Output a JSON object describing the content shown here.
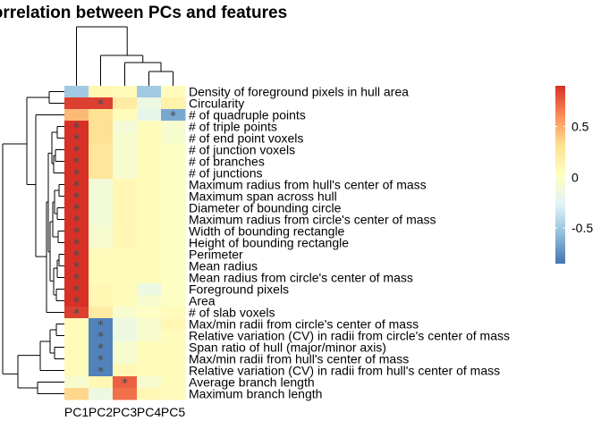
{
  "chart_data": {
    "type": "heatmap",
    "title": "Correlation between PCs and features",
    "columns": [
      "PC1",
      "PC2",
      "PC3",
      "PC4",
      "PC5"
    ],
    "rows": [
      "Density of foreground pixels in hull area",
      "Circularity",
      "# of quadruple points",
      "# of triple points",
      "# of end point voxels",
      "# of junction voxels",
      "# of branches",
      "# of junctions",
      "Maximum radius from hull's center of mass",
      "Maximum span across hull",
      "Diameter of bounding circle",
      "Maximum radius from circle's center of mass",
      "Width of bounding rectangle",
      "Height of bounding rectangle",
      "Perimeter",
      "Mean radius",
      "Mean radius from circle's center of mass",
      "Foreground pixels",
      "Area",
      "# of slab voxels",
      "Max/min radii from circle's center of mass",
      "Relative variation (CV) in radii from circle's center of mass",
      "Span ratio of hull (major/minor axis)",
      "Max/min radii from hull's center of mass",
      "Relative variation (CV) in radii from hull's center of mass",
      "Average branch length",
      "Maximum branch length"
    ],
    "values": [
      [
        -0.5,
        0.1,
        0.05,
        -0.5,
        0.05
      ],
      [
        0.85,
        0.85,
        0.2,
        -0.15,
        0.15
      ],
      [
        0.45,
        0.3,
        0.05,
        -0.2,
        -0.65
      ],
      [
        0.9,
        0.3,
        -0.1,
        0.05,
        -0.05
      ],
      [
        0.9,
        0.3,
        -0.05,
        0.05,
        -0.05
      ],
      [
        0.9,
        0.25,
        -0.05,
        0.05,
        0.0
      ],
      [
        0.9,
        0.25,
        -0.05,
        0.05,
        0.0
      ],
      [
        0.9,
        0.25,
        -0.05,
        0.05,
        0.0
      ],
      [
        0.9,
        -0.1,
        0.1,
        0.05,
        0.0
      ],
      [
        0.9,
        -0.1,
        0.1,
        0.05,
        0.0
      ],
      [
        0.9,
        -0.1,
        0.1,
        0.05,
        0.0
      ],
      [
        0.9,
        -0.1,
        0.1,
        0.05,
        0.0
      ],
      [
        0.9,
        -0.05,
        0.1,
        0.05,
        0.0
      ],
      [
        0.9,
        -0.05,
        0.1,
        0.05,
        0.0
      ],
      [
        0.9,
        0.05,
        0.05,
        0.05,
        0.0
      ],
      [
        0.9,
        0.05,
        0.05,
        0.05,
        0.0
      ],
      [
        0.9,
        0.05,
        0.05,
        0.05,
        0.0
      ],
      [
        0.9,
        0.1,
        0.05,
        -0.15,
        0.0
      ],
      [
        0.9,
        0.1,
        0.05,
        -0.05,
        0.0
      ],
      [
        0.85,
        0.2,
        -0.05,
        0.0,
        0.05
      ],
      [
        0.05,
        -0.8,
        -0.15,
        -0.05,
        0.1
      ],
      [
        0.05,
        -0.8,
        -0.15,
        -0.05,
        0.05
      ],
      [
        0.05,
        -0.8,
        -0.05,
        0.05,
        0.05
      ],
      [
        0.05,
        -0.8,
        -0.05,
        0.05,
        0.05
      ],
      [
        0.05,
        -0.8,
        0.1,
        0.05,
        0.05
      ],
      [
        -0.05,
        0.1,
        0.75,
        -0.05,
        0.05
      ],
      [
        0.35,
        -0.15,
        0.7,
        0.1,
        0.05
      ]
    ],
    "significant": [
      [
        0,
        0,
        0,
        0,
        0
      ],
      [
        0,
        1,
        0,
        0,
        0
      ],
      [
        0,
        0,
        0,
        0,
        1
      ],
      [
        1,
        0,
        0,
        0,
        0
      ],
      [
        1,
        0,
        0,
        0,
        0
      ],
      [
        1,
        0,
        0,
        0,
        0
      ],
      [
        1,
        0,
        0,
        0,
        0
      ],
      [
        1,
        0,
        0,
        0,
        0
      ],
      [
        1,
        0,
        0,
        0,
        0
      ],
      [
        1,
        0,
        0,
        0,
        0
      ],
      [
        1,
        0,
        0,
        0,
        0
      ],
      [
        1,
        0,
        0,
        0,
        0
      ],
      [
        1,
        0,
        0,
        0,
        0
      ],
      [
        1,
        0,
        0,
        0,
        0
      ],
      [
        1,
        0,
        0,
        0,
        0
      ],
      [
        1,
        0,
        0,
        0,
        0
      ],
      [
        1,
        0,
        0,
        0,
        0
      ],
      [
        1,
        0,
        0,
        0,
        0
      ],
      [
        1,
        0,
        0,
        0,
        0
      ],
      [
        1,
        0,
        0,
        0,
        0
      ],
      [
        0,
        1,
        0,
        0,
        0
      ],
      [
        0,
        1,
        0,
        0,
        0
      ],
      [
        0,
        1,
        0,
        0,
        0
      ],
      [
        0,
        1,
        0,
        0,
        0
      ],
      [
        0,
        1,
        0,
        0,
        0
      ],
      [
        0,
        0,
        1,
        0,
        0
      ],
      [
        0,
        0,
        0,
        0,
        0
      ]
    ],
    "significance_marker": "*",
    "value_range": [
      -0.85,
      0.9
    ],
    "legend": {
      "position": "right",
      "ticks": [
        {
          "value": 0.5,
          "label": "0.5"
        },
        {
          "value": 0,
          "label": "0"
        },
        {
          "value": -0.5,
          "label": "-0.5"
        }
      ]
    },
    "colors": {
      "low": "#4f7dba",
      "mid": "#ffffbf",
      "high": "#dc3c2c",
      "stops": [
        "#4575b4",
        "#91bfdb",
        "#e0f3f8",
        "#ffffbf",
        "#fee090",
        "#fc8d59",
        "#d73027"
      ]
    },
    "dendrogram": {
      "rows": true,
      "columns": true
    }
  }
}
